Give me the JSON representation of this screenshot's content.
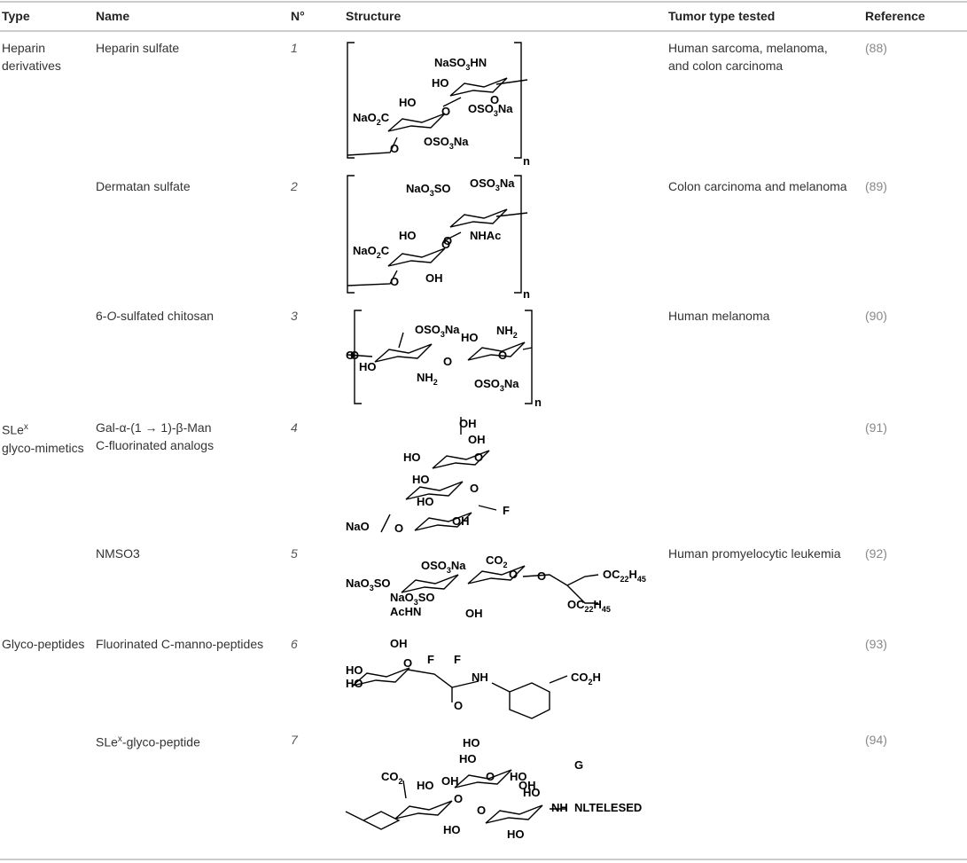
{
  "table": {
    "headers": [
      "Type",
      "Name",
      "N°",
      "Structure",
      "Tumor type tested",
      "Reference"
    ],
    "rows": [
      {
        "type": [
          "Heparin",
          "derivatives"
        ],
        "name": "Heparin sulfate",
        "number": "1",
        "structure": [
          "NaSO3HN",
          "HO",
          "O",
          "HO",
          "NaO2C",
          "O",
          "OSO3Na",
          "OSO3Na",
          "O",
          "n"
        ],
        "tumor": [
          "Human sarcoma, melanoma,",
          "and colon carcinoma"
        ],
        "reference": "(88)"
      },
      {
        "type": "",
        "name": "Dermatan sulfate",
        "number": "2",
        "structure": [
          "NaO3SO",
          "OSO3Na",
          "O",
          "HO",
          "NaO2C",
          "O",
          "NHAc",
          "OH",
          "O",
          "n"
        ],
        "tumor": "Colon carcinoma and melanoma",
        "reference": "(89)"
      },
      {
        "type": "",
        "name": [
          {
            "text": "6-"
          },
          {
            "text": "O",
            "style": "italic"
          },
          {
            "text": "-sulfated chitosan"
          }
        ],
        "number": "3",
        "structure": [
          "OSO3Na",
          "O",
          "HO",
          "O",
          "NH2",
          "HO",
          "NH2",
          "O",
          "OSO3Na",
          "O",
          "n"
        ],
        "tumor": "Human melanoma",
        "reference": "(90)"
      },
      {
        "type": [
          [
            {
              "text": "SLe"
            },
            {
              "text": "x",
              "style": "sup"
            }
          ],
          "glyco-mimetics"
        ],
        "name": [
          "Gal-α-(1 → 1)-β-Man",
          "C-fluorinated analogs"
        ],
        "number": "4",
        "structure": [
          "OH",
          "OH",
          "HO",
          "O",
          "HO",
          "HO",
          "O",
          "F",
          "NaO",
          "O",
          "OH"
        ],
        "tumor": "",
        "reference": "(91)"
      },
      {
        "type": "",
        "name": "NMSO3",
        "number": "5",
        "structure": [
          "OSO3Na",
          "CO2",
          "NaO3SO",
          "O",
          "O",
          "OC22H45",
          "NaO3SO",
          "AcHN",
          "OH",
          "OC22H45"
        ],
        "tumor": "Human promyelocytic leukemia",
        "reference": "(92)"
      },
      {
        "type": "Glyco-peptides",
        "name": "Fluorinated C-manno-peptides",
        "number": "6",
        "structure": [
          "OH",
          "HO",
          "O",
          "F",
          "F",
          "HO",
          "NH",
          "CO2H",
          "O"
        ],
        "tumor": "",
        "reference": "(93)"
      },
      {
        "type": "",
        "name": [
          {
            "text": "SLe"
          },
          {
            "text": "x",
            "style": "sup"
          },
          {
            "text": "-glyco-peptide"
          }
        ],
        "number": "7",
        "structure": [
          "HO",
          "HO",
          "O",
          "OH",
          "CO2",
          "HO",
          "OH",
          "O",
          "O",
          "HO",
          "G",
          "NH",
          "NLTELESED",
          "HO",
          "HO",
          "HO"
        ],
        "tumor": "",
        "reference": "(94)"
      }
    ]
  }
}
